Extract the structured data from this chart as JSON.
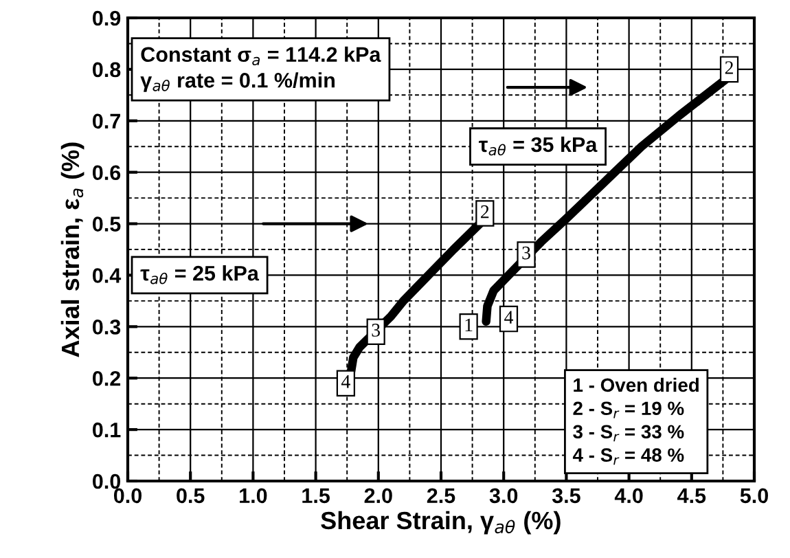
{
  "chart_data": {
    "type": "line",
    "xlabel": "Shear Strain, γ$_{aθ}$ (%)",
    "ylabel": "Axial strain, ε$_{a}$ (%)",
    "xlim": [
      0.0,
      5.0
    ],
    "ylim": [
      0.0,
      0.9
    ],
    "xticks": [
      {
        "value": 0,
        "label": "0.0"
      },
      0.5,
      {
        "value": 1,
        "label": "1.0"
      },
      1.5,
      {
        "value": 2,
        "label": "2.0"
      },
      2.5,
      {
        "value": 3,
        "label": "3.0"
      },
      3.5,
      {
        "value": 4,
        "label": "4.0"
      },
      4.5,
      {
        "value": 5,
        "label": "5.0"
      }
    ],
    "yticks": [
      {
        "value": 0,
        "label": "0.0"
      },
      0.1,
      0.2,
      0.3,
      0.4,
      0.5,
      0.6,
      0.7,
      0.8,
      0.9
    ],
    "grid": true,
    "series": [
      {
        "color": "#000000",
        "x": [
          1.78,
          1.8,
          1.85,
          2.1,
          2.2,
          2.4,
          2.6,
          2.81
        ],
        "values": [
          0.21,
          0.24,
          0.26,
          0.32,
          0.35,
          0.4,
          0.45,
          0.5
        ]
      },
      {
        "color": "#000000",
        "x": [
          2.86,
          2.87,
          2.92,
          3.0,
          3.3,
          3.5,
          3.8,
          4.1,
          4.4,
          4.77
        ],
        "values": [
          0.31,
          0.34,
          0.37,
          0.39,
          0.465,
          0.51,
          0.58,
          0.65,
          0.71,
          0.78
        ]
      }
    ],
    "annotations": [
      {
        "text": "4",
        "x": 1.74,
        "y": 0.19
      },
      {
        "text": "3",
        "x": 1.98,
        "y": 0.29
      },
      {
        "text": "2",
        "x": 2.85,
        "y": 0.52
      },
      {
        "text": "1",
        "x": 2.72,
        "y": 0.3
      },
      {
        "text": "4",
        "x": 3.04,
        "y": 0.315
      },
      {
        "text": "3",
        "x": 3.18,
        "y": 0.44
      },
      {
        "text": "2",
        "x": 4.8,
        "y": 0.8
      },
      "Constant σ$_{a}$ = 114.2 kPa\nγ$_{aθ}$ rate = 0.1 %/min",
      "τ$_{aθ}$ = 25 kPa",
      "τ$_{aθ}$ = 35 kPa",
      "1 - Oven dried\n2 - S$_{r}$ = 19 %\n3 - S$_{r}$ = 33 %\n4 - S$_{r}$ = 48 %"
    ]
  }
}
